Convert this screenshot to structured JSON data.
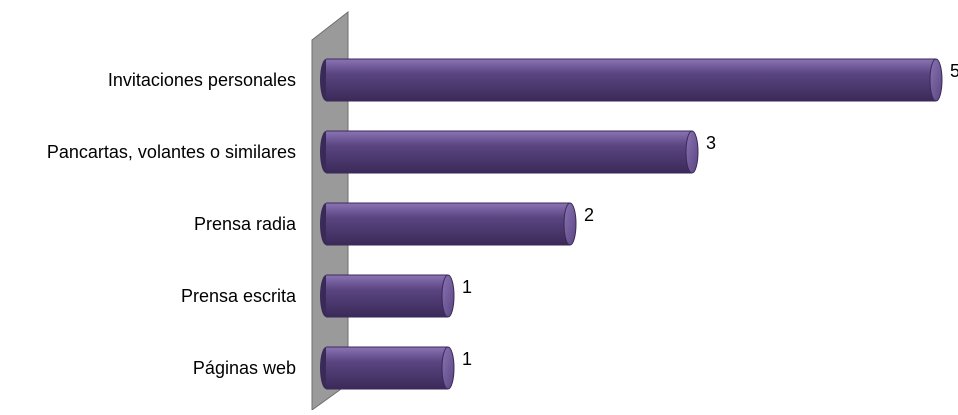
{
  "chart_data": {
    "type": "bar",
    "orientation": "horizontal",
    "style": "3d-cylinder",
    "title": "",
    "xlabel": "",
    "ylabel": "",
    "categories": [
      "Invitaciones personales",
      "Pancartas, volantes o similares",
      "Prensa radia",
      "Prensa escrita",
      "Páginas web"
    ],
    "values": [
      5,
      3,
      2,
      1,
      1
    ],
    "xlim": [
      0,
      5
    ],
    "grid": false,
    "legend": "none",
    "colors": {
      "bar": "#5a4581",
      "bar_dark": "#3a2a58",
      "bar_light": "#8a74b4",
      "wall_face": "#9a9a9a",
      "wall_edge": "#6e6e6e",
      "text": "#000000"
    }
  }
}
